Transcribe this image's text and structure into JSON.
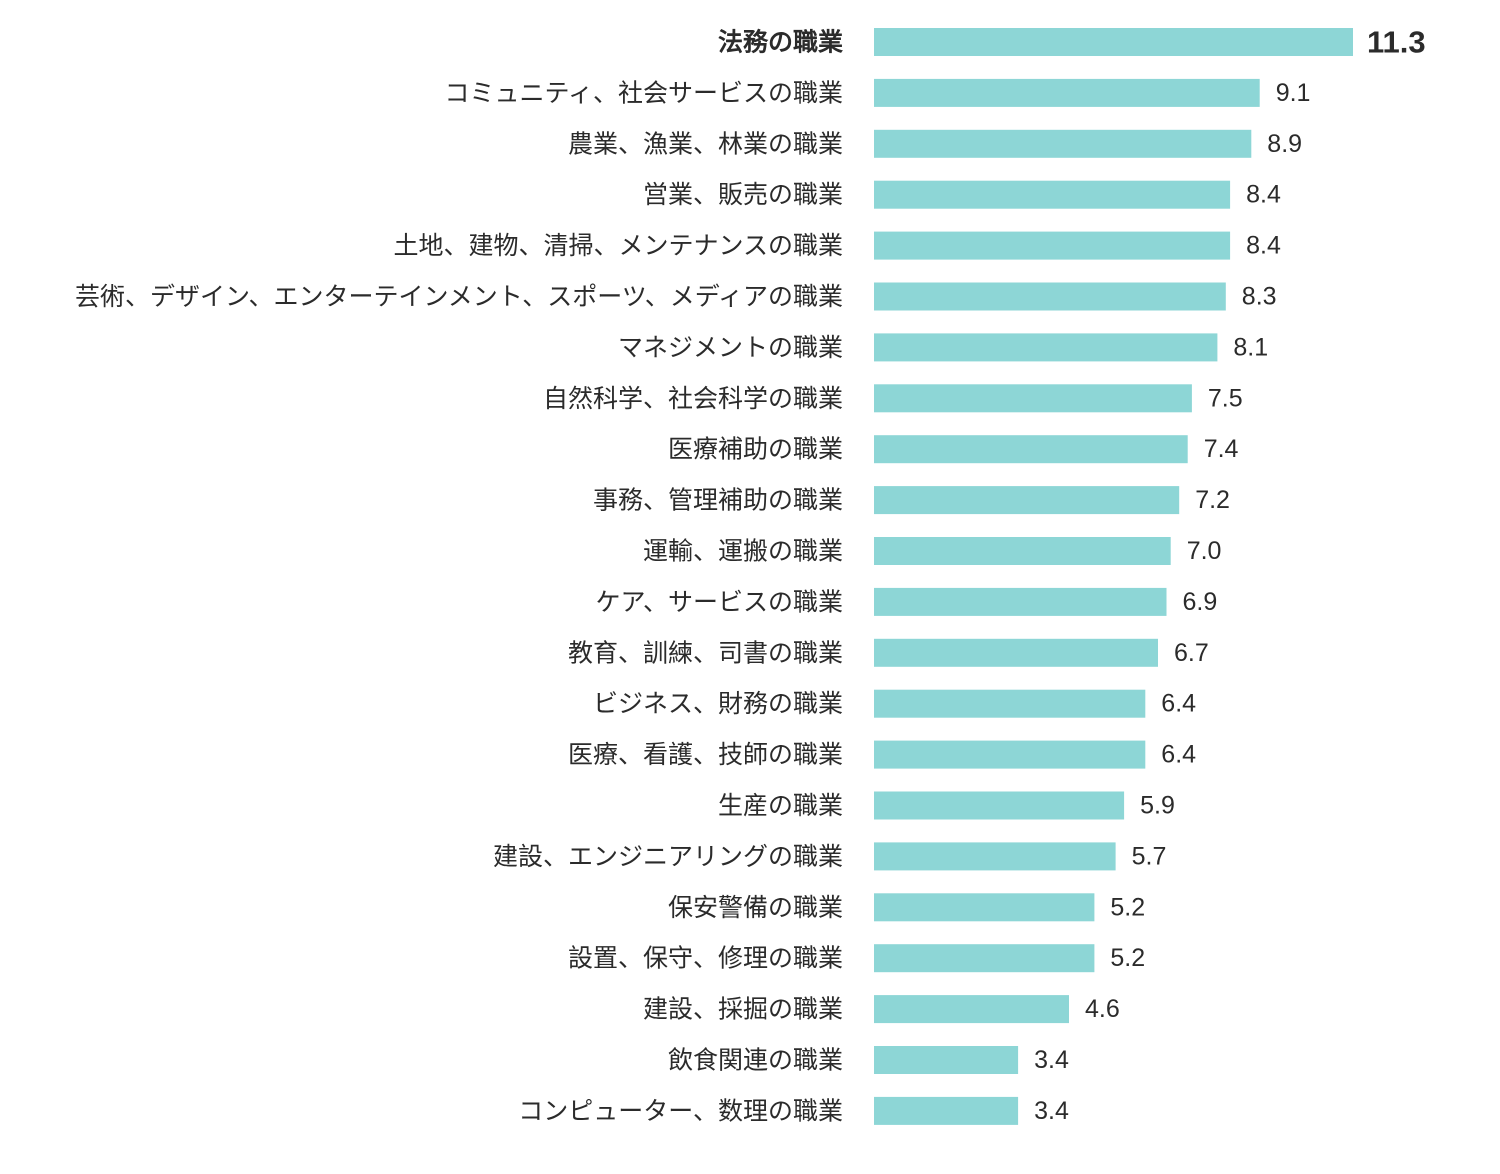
{
  "chart_data": {
    "type": "bar",
    "orientation": "horizontal",
    "title": "",
    "xlabel": "",
    "ylabel": "",
    "categories": [
      "法務の職業",
      "コミュニティ、社会サービスの職業",
      "農業、漁業、林業の職業",
      "営業、販売の職業",
      "土地、建物、清掃、メンテナンスの職業",
      "芸術、デザイン、エンターテインメント、スポーツ、メディアの職業",
      "マネジメントの職業",
      "自然科学、社会科学の職業",
      "医療補助の職業",
      "事務、管理補助の職業",
      "運輸、運搬の職業",
      "ケア、サービスの職業",
      "教育、訓練、司書の職業",
      "ビジネス、財務の職業",
      "医療、看護、技師の職業",
      "生産の職業",
      "建設、エンジニアリングの職業",
      "保安警備の職業",
      "設置、保守、修理の職業",
      "建設、採掘の職業",
      "飲食関連の職業",
      "コンピューター、数理の職業"
    ],
    "values": [
      11.3,
      9.1,
      8.9,
      8.4,
      8.4,
      8.3,
      8.1,
      7.5,
      7.4,
      7.2,
      7.0,
      6.9,
      6.7,
      6.4,
      6.4,
      5.9,
      5.7,
      5.2,
      5.2,
      4.6,
      3.4,
      3.4
    ],
    "value_labels": [
      "11.3",
      "9.1",
      "8.9",
      "8.4",
      "8.4",
      "8.3",
      "8.1",
      "7.5",
      "7.4",
      "7.2",
      "7.0",
      "6.9",
      "6.7",
      "6.4",
      "6.4",
      "5.9",
      "5.7",
      "5.2",
      "5.2",
      "4.6",
      "3.4",
      "3.4"
    ],
    "xlim": [
      0,
      11.3
    ],
    "grid": false,
    "legend": "none",
    "highlight_index": 0,
    "colors": {
      "bar": "#8dd6d6",
      "highlight_value": "#6b1030",
      "label": "#2b2b2b"
    }
  }
}
